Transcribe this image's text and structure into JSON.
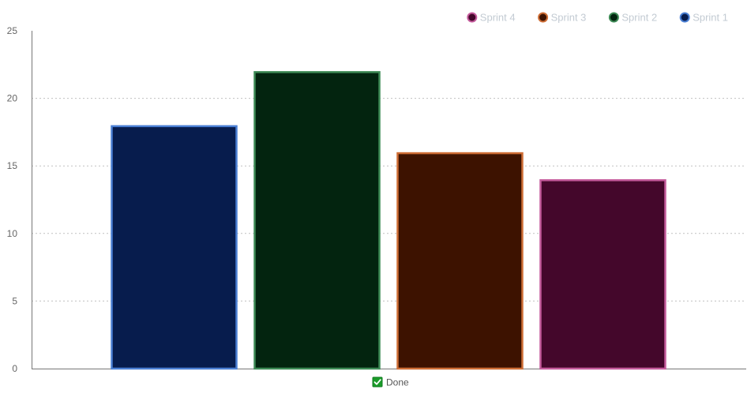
{
  "chart_data": {
    "type": "bar",
    "categories": [
      "Done"
    ],
    "series": [
      {
        "name": "Sprint 1",
        "values": [
          18
        ],
        "fill": "#071c4d",
        "stroke": "#4a7fd4"
      },
      {
        "name": "Sprint 2",
        "values": [
          22
        ],
        "fill": "#03240f",
        "stroke": "#3d8a55"
      },
      {
        "name": "Sprint 3",
        "values": [
          16
        ],
        "fill": "#3d1200",
        "stroke": "#cf6e36"
      },
      {
        "name": "Sprint 4",
        "values": [
          14
        ],
        "fill": "#44072b",
        "stroke": "#c45a9b"
      }
    ],
    "legend_order": [
      "Sprint 4",
      "Sprint 3",
      "Sprint 2",
      "Sprint 1"
    ],
    "yticks": [
      0,
      5,
      10,
      15,
      20,
      25
    ],
    "ylim": [
      0,
      25
    ],
    "grid": true,
    "legend_position": "top-right",
    "category_checkbox": {
      "label": "Done",
      "checked": true,
      "color": "#1a9c2a"
    }
  }
}
